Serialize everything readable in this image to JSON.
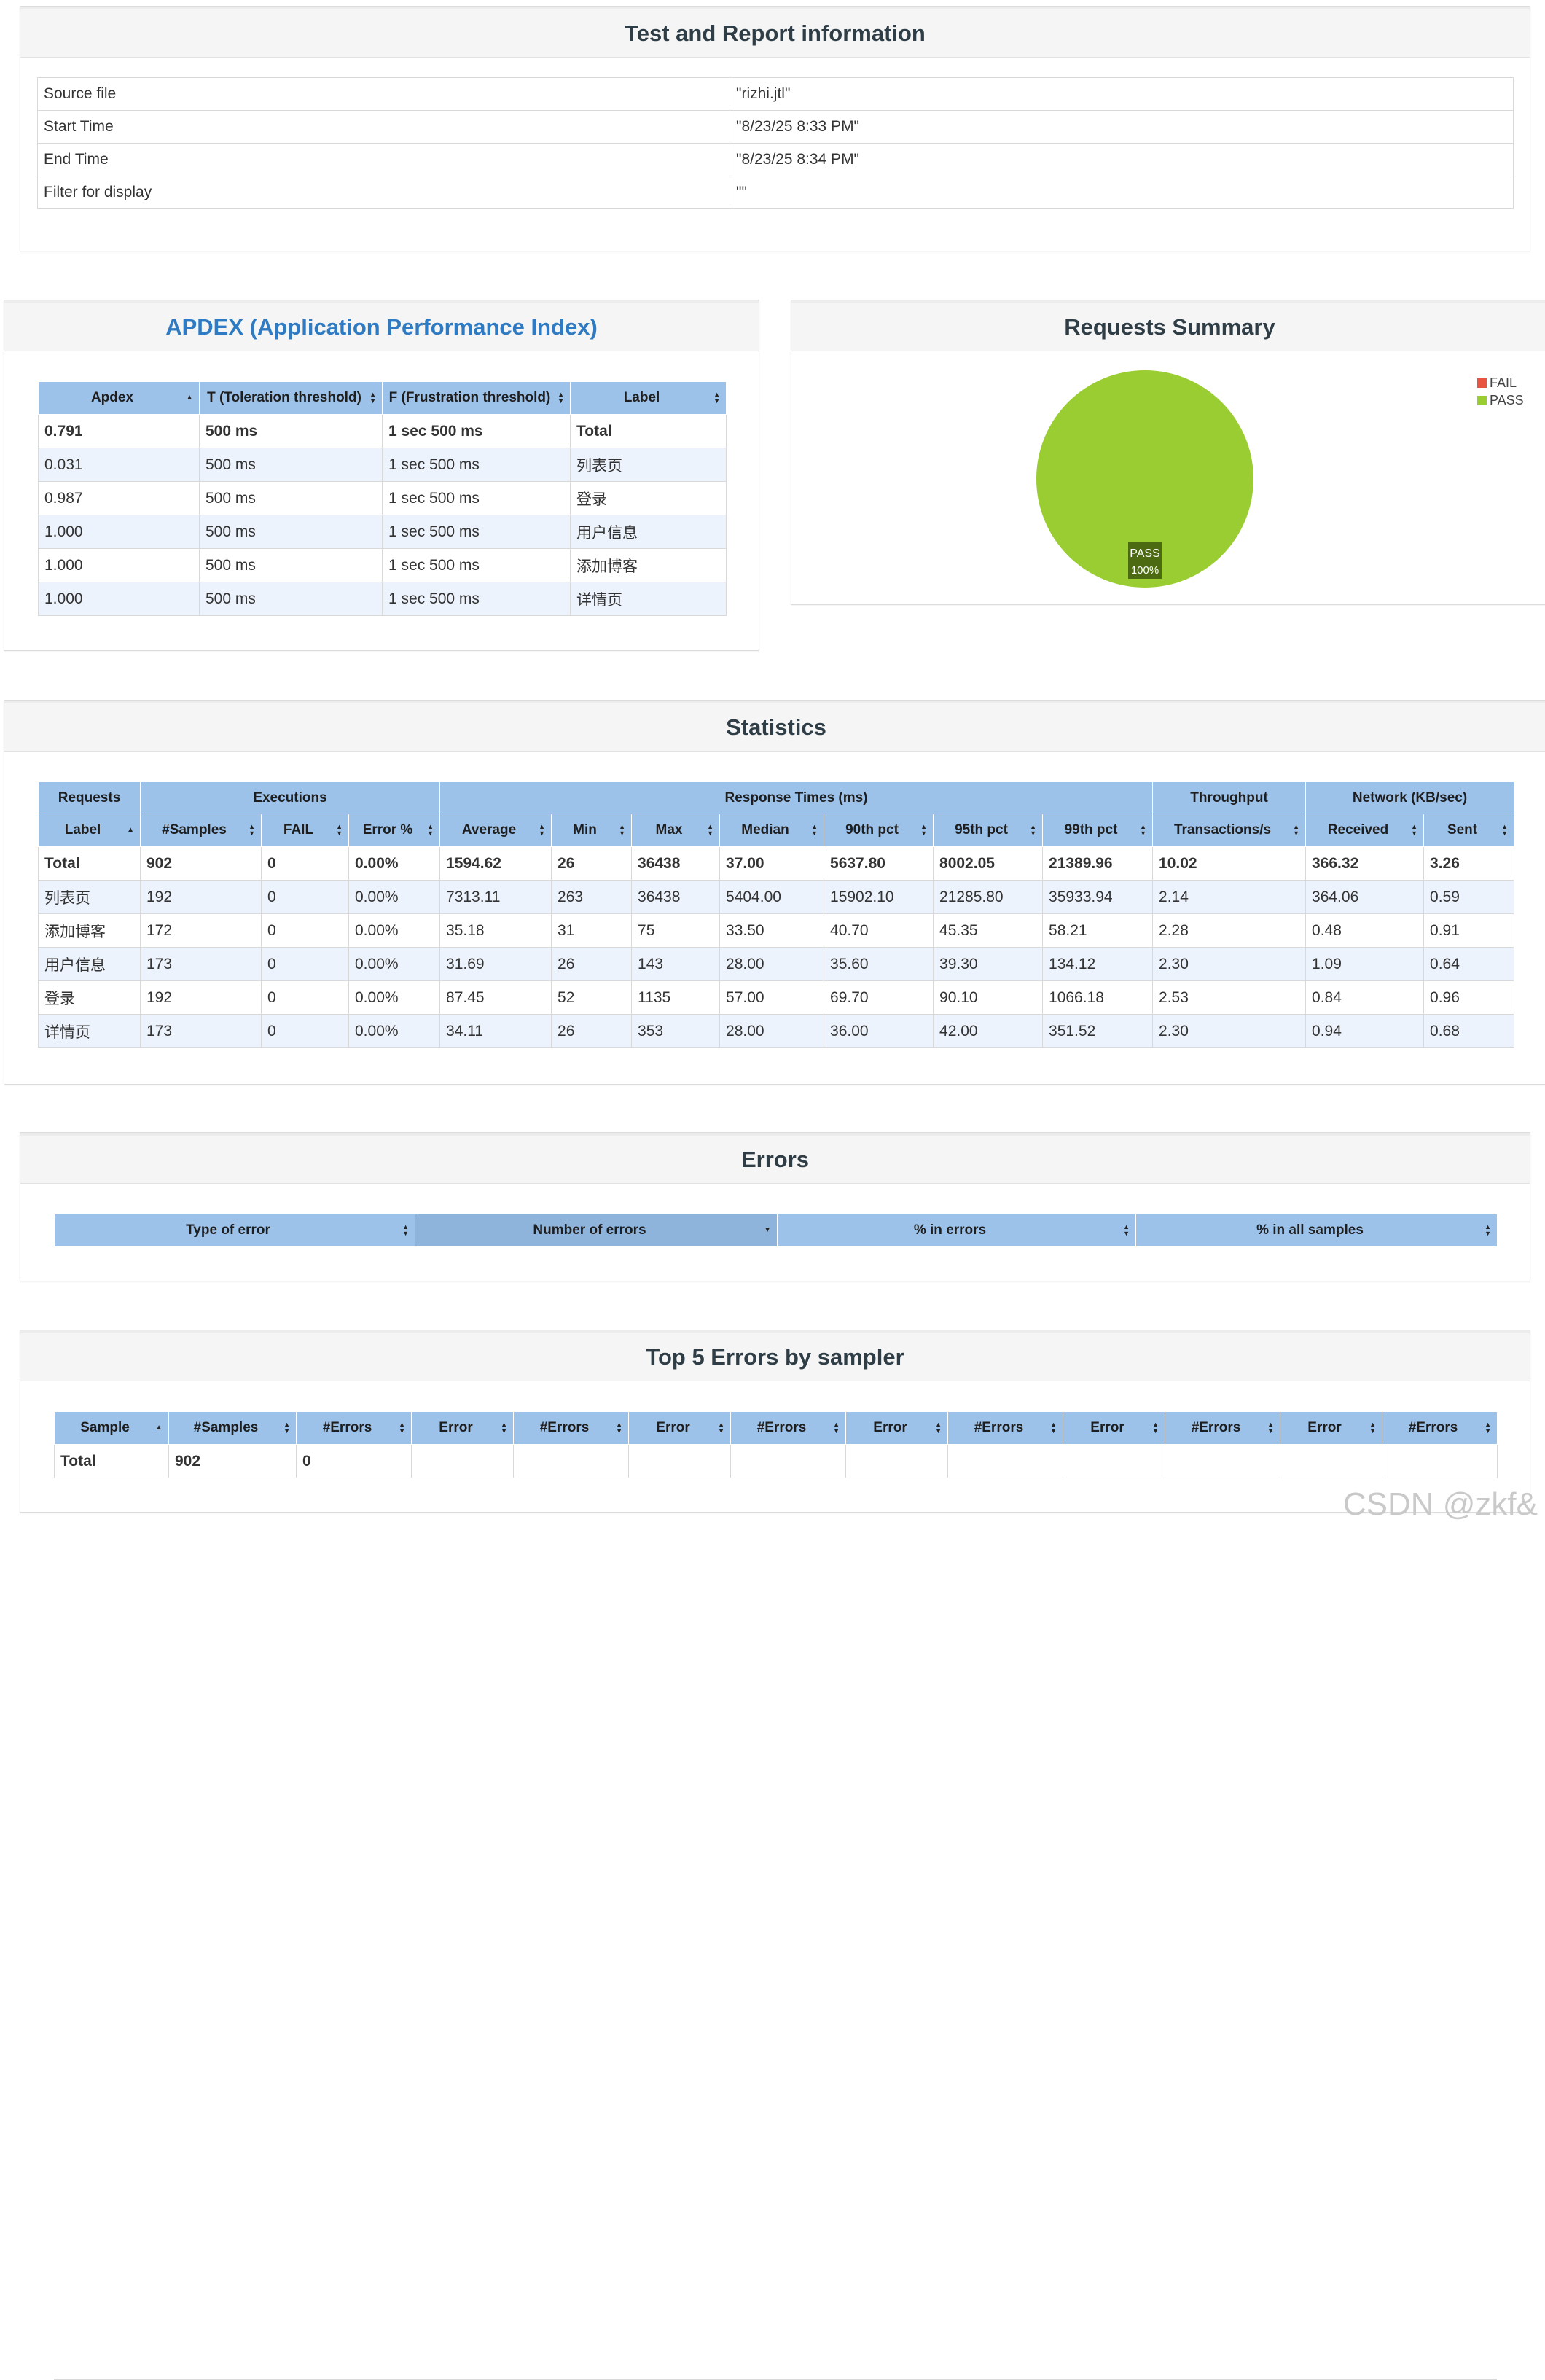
{
  "info": {
    "title": "Test and Report information",
    "rows": [
      {
        "label": "Source file",
        "value": "\"rizhi.jtl\""
      },
      {
        "label": "Start Time",
        "value": "\"8/23/25 8:33 PM\""
      },
      {
        "label": "End Time",
        "value": "\"8/23/25 8:34 PM\""
      },
      {
        "label": "Filter for display",
        "value": "\"\""
      }
    ]
  },
  "apdex": {
    "title": "APDEX (Application Performance Index)",
    "headers": [
      "Apdex",
      "T (Toleration threshold)",
      "F (Frustration threshold)",
      "Label"
    ],
    "rows": [
      [
        "0.791",
        "500 ms",
        "1 sec 500 ms",
        "Total"
      ],
      [
        "0.031",
        "500 ms",
        "1 sec 500 ms",
        "列表页"
      ],
      [
        "0.987",
        "500 ms",
        "1 sec 500 ms",
        "登录"
      ],
      [
        "1.000",
        "500 ms",
        "1 sec 500 ms",
        "用户信息"
      ],
      [
        "1.000",
        "500 ms",
        "1 sec 500 ms",
        "添加博客"
      ],
      [
        "1.000",
        "500 ms",
        "1 sec 500 ms",
        "详情页"
      ]
    ]
  },
  "summary": {
    "title": "Requests Summary",
    "chart_data": {
      "type": "pie",
      "labels": [
        "FAIL",
        "PASS"
      ],
      "values": [
        0,
        100
      ],
      "colors": [
        "#e8543f",
        "#9acd32"
      ],
      "slice_label": "PASS",
      "slice_value": "100%",
      "legend": "top-right"
    }
  },
  "stats": {
    "title": "Statistics",
    "groups": [
      "Requests",
      "Executions",
      "Response Times (ms)",
      "Throughput",
      "Network (KB/sec)"
    ],
    "headers": [
      "Label",
      "#Samples",
      "FAIL",
      "Error %",
      "Average",
      "Min",
      "Max",
      "Median",
      "90th pct",
      "95th pct",
      "99th pct",
      "Transactions/s",
      "Received",
      "Sent"
    ],
    "rows": [
      [
        "Total",
        "902",
        "0",
        "0.00%",
        "1594.62",
        "26",
        "36438",
        "37.00",
        "5637.80",
        "8002.05",
        "21389.96",
        "10.02",
        "366.32",
        "3.26"
      ],
      [
        "列表页",
        "192",
        "0",
        "0.00%",
        "7313.11",
        "263",
        "36438",
        "5404.00",
        "15902.10",
        "21285.80",
        "35933.94",
        "2.14",
        "364.06",
        "0.59"
      ],
      [
        "添加博客",
        "172",
        "0",
        "0.00%",
        "35.18",
        "31",
        "75",
        "33.50",
        "40.70",
        "45.35",
        "58.21",
        "2.28",
        "0.48",
        "0.91"
      ],
      [
        "用户信息",
        "173",
        "0",
        "0.00%",
        "31.69",
        "26",
        "143",
        "28.00",
        "35.60",
        "39.30",
        "134.12",
        "2.30",
        "1.09",
        "0.64"
      ],
      [
        "登录",
        "192",
        "0",
        "0.00%",
        "87.45",
        "52",
        "1135",
        "57.00",
        "69.70",
        "90.10",
        "1066.18",
        "2.53",
        "0.84",
        "0.96"
      ],
      [
        "详情页",
        "173",
        "0",
        "0.00%",
        "34.11",
        "26",
        "353",
        "28.00",
        "36.00",
        "42.00",
        "351.52",
        "2.30",
        "0.94",
        "0.68"
      ]
    ]
  },
  "errors": {
    "title": "Errors",
    "headers": [
      "Type of error",
      "Number of errors",
      "% in errors",
      "% in all samples"
    ]
  },
  "top5": {
    "title": "Top 5 Errors by sampler",
    "headers": [
      "Sample",
      "#Samples",
      "#Errors",
      "Error",
      "#Errors",
      "Error",
      "#Errors",
      "Error",
      "#Errors",
      "Error",
      "#Errors",
      "Error",
      "#Errors"
    ],
    "rows": [
      [
        "Total",
        "902",
        "0",
        "",
        "",
        "",
        "",
        "",
        "",
        "",
        "",
        "",
        ""
      ]
    ]
  },
  "watermark": "CSDN @zkf&"
}
